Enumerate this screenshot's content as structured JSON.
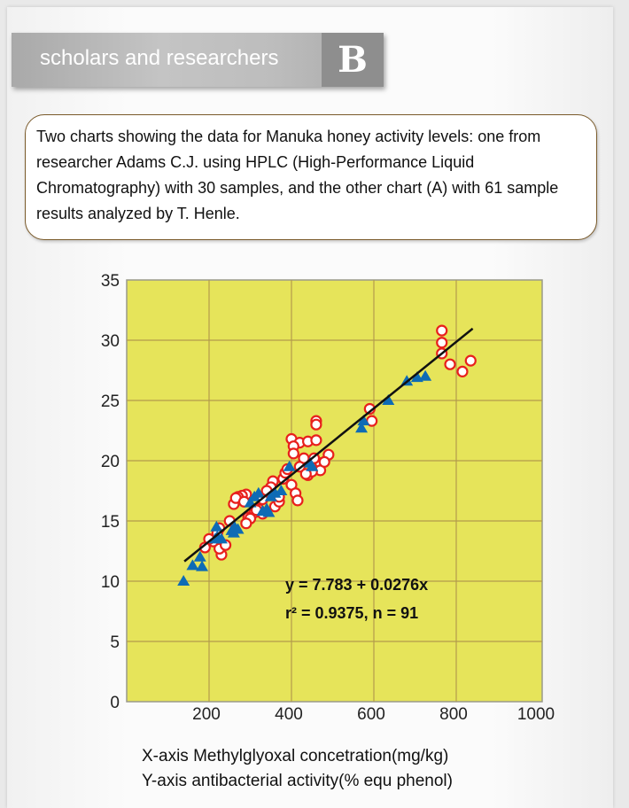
{
  "header": {
    "title": "scholars and researchers",
    "section_letter": "B"
  },
  "description": "Two charts showing the data for Manuka honey activity levels: one from researcher Adams C.J. using HPLC (High-Performance Liquid Chromatography) with 30 samples, and the other chart (A) with 61 sample results analyzed by T. Henle.",
  "captions": {
    "x": "X-axis  Methylglyoxal concetration(mg/kg)",
    "y": "Y-axis  antibacterial activity(% equ phenol)"
  },
  "chart_data": {
    "type": "scatter",
    "xlim": [
      0,
      1000
    ],
    "ylim": [
      0,
      35
    ],
    "x_ticks": [
      "200",
      "400",
      "600",
      "800",
      "1000"
    ],
    "x_tick_values": [
      200,
      400,
      600,
      800,
      1000
    ],
    "y_ticks": [
      "0",
      "5",
      "10",
      "15",
      "20",
      "25",
      "30",
      "35"
    ],
    "y_tick_values": [
      0,
      5,
      10,
      15,
      20,
      25,
      30,
      35
    ],
    "grid": true,
    "background_color": "#e6e45a",
    "regression": {
      "intercept": 7.783,
      "slope": 0.0276,
      "x_range": [
        140,
        840
      ],
      "equation": "y = 7.783 + 0.0276x",
      "stats": "r² = 0.9375,  n = 91"
    },
    "series": [
      {
        "name": "Adams C.J. (HPLC, 30 samples)",
        "marker": "triangle",
        "color": "#0e6bb5",
        "points": [
          [
            138,
            10
          ],
          [
            160,
            11.3
          ],
          [
            178,
            12
          ],
          [
            183,
            11.2
          ],
          [
            215,
            13.5
          ],
          [
            218,
            14.5
          ],
          [
            220,
            13.7
          ],
          [
            230,
            13.5
          ],
          [
            255,
            14.2
          ],
          [
            260,
            14
          ],
          [
            262,
            14.5
          ],
          [
            270,
            14.3
          ],
          [
            300,
            16.5
          ],
          [
            310,
            17
          ],
          [
            320,
            17.3
          ],
          [
            330,
            15.8
          ],
          [
            340,
            16
          ],
          [
            345,
            15.7
          ],
          [
            350,
            17
          ],
          [
            360,
            17.3
          ],
          [
            375,
            17.5
          ],
          [
            395,
            19.5
          ],
          [
            445,
            19.8
          ],
          [
            450,
            19.5
          ],
          [
            570,
            22.7
          ],
          [
            575,
            23.3
          ],
          [
            635,
            25
          ],
          [
            680,
            26.6
          ],
          [
            705,
            26.9
          ],
          [
            725,
            27
          ]
        ]
      },
      {
        "name": "T. Henle (61 samples)",
        "marker": "circle",
        "color": "#e8201c",
        "points": [
          [
            765,
            30.8
          ],
          [
            765,
            29.8
          ],
          [
            765,
            28.9
          ],
          [
            785,
            28
          ],
          [
            815,
            27.4
          ],
          [
            835,
            28.3
          ],
          [
            590,
            24.3
          ],
          [
            595,
            23.3
          ],
          [
            460,
            23.3
          ],
          [
            460,
            23
          ],
          [
            400,
            21.8
          ],
          [
            420,
            21.5
          ],
          [
            440,
            21.6
          ],
          [
            460,
            21.7
          ],
          [
            405,
            21.2
          ],
          [
            405,
            20.6
          ],
          [
            490,
            20.5
          ],
          [
            430,
            20.2
          ],
          [
            470,
            19.8
          ],
          [
            470,
            19.2
          ],
          [
            440,
            18.8
          ],
          [
            450,
            19.1
          ],
          [
            420,
            19.5
          ],
          [
            400,
            18
          ],
          [
            380,
            18.5
          ],
          [
            385,
            19
          ],
          [
            410,
            17.3
          ],
          [
            415,
            16.7
          ],
          [
            355,
            18.3
          ],
          [
            350,
            17.8
          ],
          [
            340,
            17.5
          ],
          [
            330,
            16.8
          ],
          [
            320,
            16
          ],
          [
            310,
            15.7
          ],
          [
            360,
            16.2
          ],
          [
            370,
            16.6
          ],
          [
            290,
            17.2
          ],
          [
            280,
            17.1
          ],
          [
            270,
            17
          ],
          [
            260,
            16.4
          ],
          [
            265,
            16.9
          ],
          [
            285,
            16.6
          ],
          [
            295,
            15.3
          ],
          [
            300,
            15.2
          ],
          [
            290,
            14.8
          ],
          [
            250,
            15
          ],
          [
            225,
            14.4
          ],
          [
            220,
            14
          ],
          [
            230,
            12.2
          ],
          [
            225,
            12.7
          ],
          [
            210,
            13.3
          ],
          [
            200,
            13.5
          ],
          [
            190,
            12.8
          ],
          [
            240,
            13
          ],
          [
            435,
            18.9
          ],
          [
            455,
            20.2
          ],
          [
            480,
            19.9
          ],
          [
            370,
            17
          ],
          [
            390,
            19.3
          ],
          [
            330,
            15.6
          ],
          [
            315,
            15.9
          ]
        ]
      }
    ]
  }
}
